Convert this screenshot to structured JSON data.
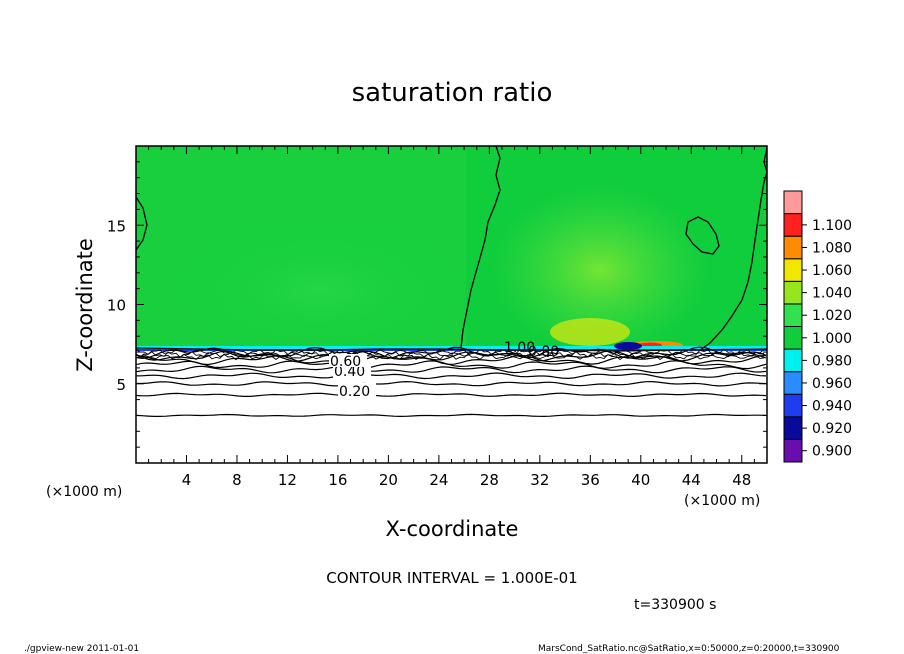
{
  "chart_data": {
    "type": "heatmap",
    "title": "saturation ratio",
    "xlabel": "X-coordinate",
    "ylabel": "Z-coordinate",
    "x_unit": "(×1000 m)",
    "y_unit": "(×1000 m)",
    "xlim": [
      0,
      50
    ],
    "ylim": [
      0,
      20
    ],
    "x_ticks": [
      "4",
      "8",
      "12",
      "16",
      "20",
      "24",
      "28",
      "32",
      "36",
      "40",
      "44",
      "48"
    ],
    "y_ticks": [
      "5",
      "10",
      "15"
    ],
    "colorbar": {
      "levels": [
        "0.900",
        "0.920",
        "0.940",
        "0.960",
        "0.980",
        "1.000",
        "1.020",
        "1.040",
        "1.060",
        "1.080",
        "1.100"
      ],
      "colors": [
        "#6a0dad",
        "#0a0a9a",
        "#1e3cf0",
        "#2a8cff",
        "#00f0f0",
        "#10cd3c",
        "#32e050",
        "#96e61e",
        "#f0e600",
        "#ff8c00",
        "#ff2020",
        "#ff9a9a"
      ]
    },
    "contour_labels": [
      "0.20",
      "0.40",
      "0.60",
      "0.80",
      "1.00"
    ],
    "contour_levels_z": [
      {
        "value": 0.1,
        "z": 3.0
      },
      {
        "value": 0.2,
        "z": 4.3
      },
      {
        "value": 0.3,
        "z": 5.0
      },
      {
        "value": 0.4,
        "z": 5.5
      },
      {
        "value": 0.5,
        "z": 5.9
      },
      {
        "value": 0.6,
        "z": 6.2
      },
      {
        "value": 0.7,
        "z": 6.5
      },
      {
        "value": 0.8,
        "z": 6.75
      },
      {
        "value": 0.9,
        "z": 6.95
      }
    ],
    "saturated_layer_base_z": 7.2,
    "contour_interval_text": "CONTOUR INTERVAL = 1.000E-01",
    "time_text": "t=330900  s"
  },
  "footer": {
    "left": "./gpview-new   2011-01-01",
    "right": "MarsCond_SatRatio.nc@SatRatio,x=0:50000,z=0:20000,t=330900"
  }
}
